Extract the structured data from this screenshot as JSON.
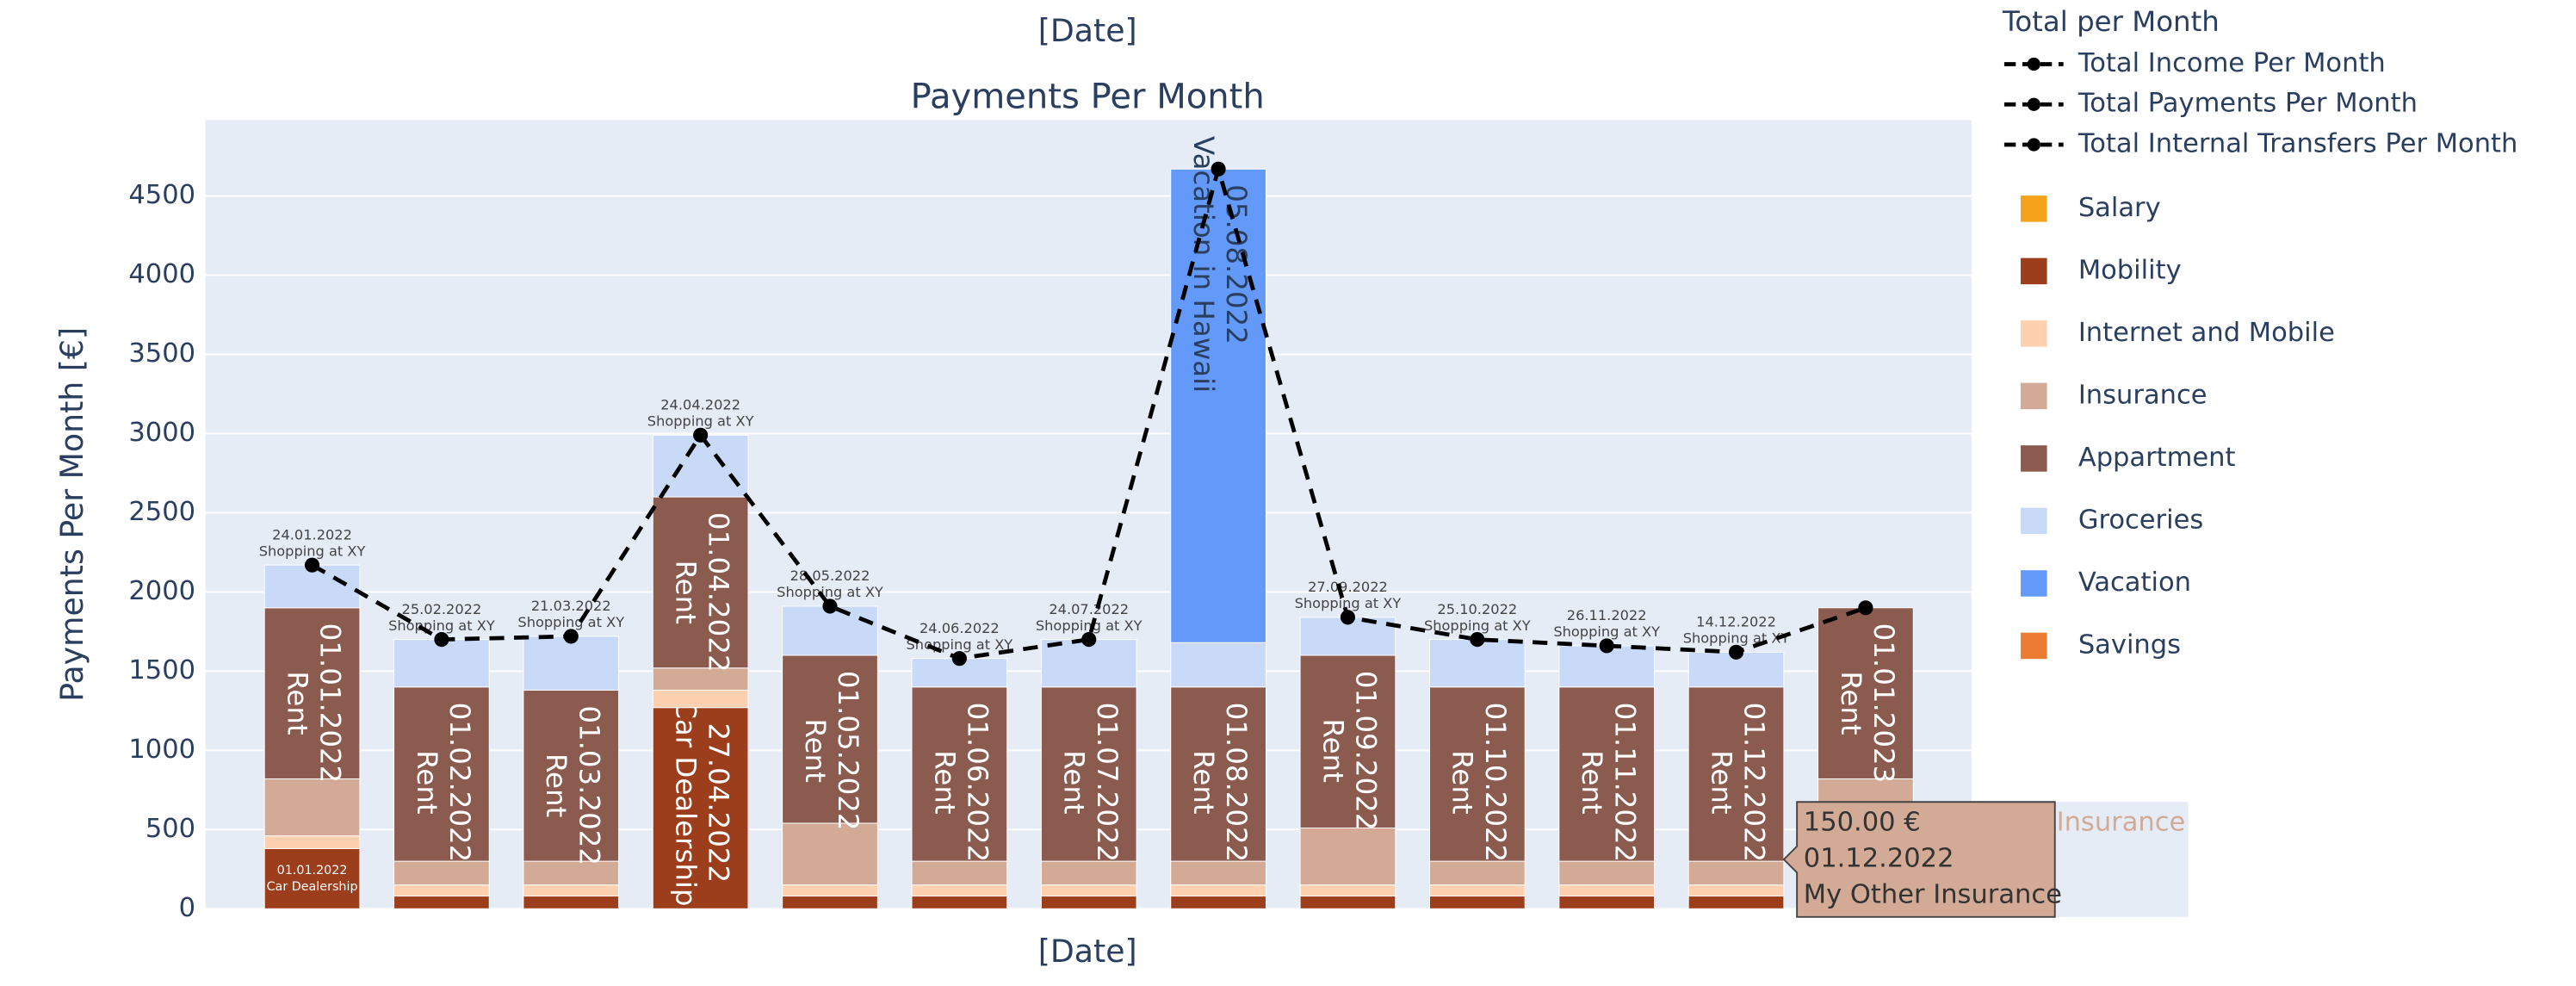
{
  "chart_data": {
    "type": "bar",
    "barmode": "stack",
    "title": "Payments Per Month",
    "x_title_top": "[Date]",
    "x_title": "[Date]",
    "y_title": "Payments Per Month [€]",
    "legend_title": "Total per Month",
    "legend": "right",
    "grid": true,
    "ylim": [
      0,
      4980
    ],
    "yticks": [
      0,
      500,
      1000,
      1500,
      2000,
      2500,
      3000,
      3500,
      4000,
      4500
    ],
    "lines": [
      {
        "name": "Total Income Per Month",
        "color": "#000000",
        "dash": true
      },
      {
        "name": "Total Payments Per Month",
        "color": "#000000",
        "dash": true,
        "values": [
          2170,
          1700,
          1720,
          2990,
          1910,
          1580,
          1700,
          4670,
          1840,
          1700,
          1660,
          1620,
          1900
        ]
      },
      {
        "name": "Total Internal Transfers Per Month",
        "color": "#000000",
        "dash": true
      }
    ],
    "series": [
      {
        "name": "Salary",
        "color": "#f5a31a",
        "values": [
          null,
          null,
          null,
          null,
          null,
          null,
          null,
          null,
          null,
          null,
          null,
          null,
          null
        ]
      },
      {
        "name": "Mobility",
        "color": "#9c3d1c",
        "text_color": "#ffffff",
        "values": [
          380,
          80,
          80,
          1270,
          80,
          80,
          80,
          80,
          80,
          80,
          80,
          80,
          null
        ],
        "dates": [
          "01.01.2022",
          null,
          null,
          "27.04.2022",
          null,
          null,
          null,
          null,
          null,
          null,
          null,
          null,
          null
        ],
        "descriptions": [
          "Car Dealership",
          null,
          null,
          "Car Dealership",
          null,
          null,
          null,
          null,
          null,
          null,
          null,
          null,
          null
        ]
      },
      {
        "name": "Internet and Mobile",
        "color": "#fdd0b0",
        "values": [
          80,
          70,
          70,
          110,
          70,
          70,
          70,
          70,
          70,
          70,
          70,
          70,
          null
        ]
      },
      {
        "name": "Insurance",
        "color": "#d2aa96",
        "values": [
          360,
          150,
          150,
          140,
          390,
          150,
          150,
          150,
          360,
          150,
          150,
          150,
          820
        ]
      },
      {
        "name": "Appartment",
        "color": "#8c5b4f",
        "text_color": "#ffffff",
        "values": [
          1080,
          1100,
          1080,
          1080,
          1060,
          1100,
          1100,
          1100,
          1090,
          1100,
          1100,
          1100,
          1080
        ],
        "dates": [
          "01.01.2022",
          "01.02.2022",
          "01.03.2022",
          "01.04.2022",
          "01.05.2022",
          "01.06.2022",
          "01.07.2022",
          "01.08.2022",
          "01.09.2022",
          "01.10.2022",
          "01.11.2022",
          "01.12.2022",
          "01.01.2023"
        ],
        "descriptions": [
          "Rent",
          "Rent",
          "Rent",
          "Rent",
          "Rent",
          "Rent",
          "Rent",
          "Rent",
          "Rent",
          "Rent",
          "Rent",
          "Rent",
          "Rent"
        ]
      },
      {
        "name": "Groceries",
        "color": "#c9d9f8",
        "text_color": "#444444",
        "text_position": "outside",
        "values": [
          270,
          300,
          340,
          390,
          310,
          180,
          300,
          280,
          240,
          300,
          260,
          220,
          null
        ],
        "dates": [
          "24.01.2022",
          "25.02.2022",
          "21.03.2022",
          "24.04.2022",
          "28.05.2022",
          "24.06.2022",
          "24.07.2022",
          null,
          "27.09.2022",
          "25.10.2022",
          "26.11.2022",
          "14.12.2022",
          null
        ],
        "descriptions": [
          "Shopping at XY",
          "Shopping at XY",
          "Shopping at XY",
          "Shopping at XY",
          "Shopping at XY",
          "Shopping at XY",
          "Shopping at XY",
          null,
          "Shopping at XY",
          "Shopping at XY",
          "Shopping at XY",
          "Shopping at XY",
          null
        ]
      },
      {
        "name": "Vacation",
        "color": "#6399f8",
        "text_color": "#2a3f5f",
        "values": [
          null,
          null,
          null,
          null,
          null,
          null,
          null,
          2990,
          null,
          null,
          null,
          null,
          null
        ],
        "dates": [
          null,
          null,
          null,
          null,
          null,
          null,
          null,
          "05.08.2022",
          null,
          null,
          null,
          null,
          null
        ],
        "descriptions": [
          null,
          null,
          null,
          null,
          null,
          null,
          null,
          "Vacation in Hawaii",
          null,
          null,
          null,
          null,
          null
        ]
      },
      {
        "name": "Savings",
        "color": "#ec7a33",
        "values": [
          null,
          null,
          null,
          null,
          null,
          null,
          null,
          null,
          null,
          null,
          null,
          null,
          null
        ]
      }
    ],
    "hover": {
      "value_label": "150.00 €",
      "date": "01.12.2022",
      "text": "My Other Insurance",
      "name": "Insurance"
    }
  }
}
